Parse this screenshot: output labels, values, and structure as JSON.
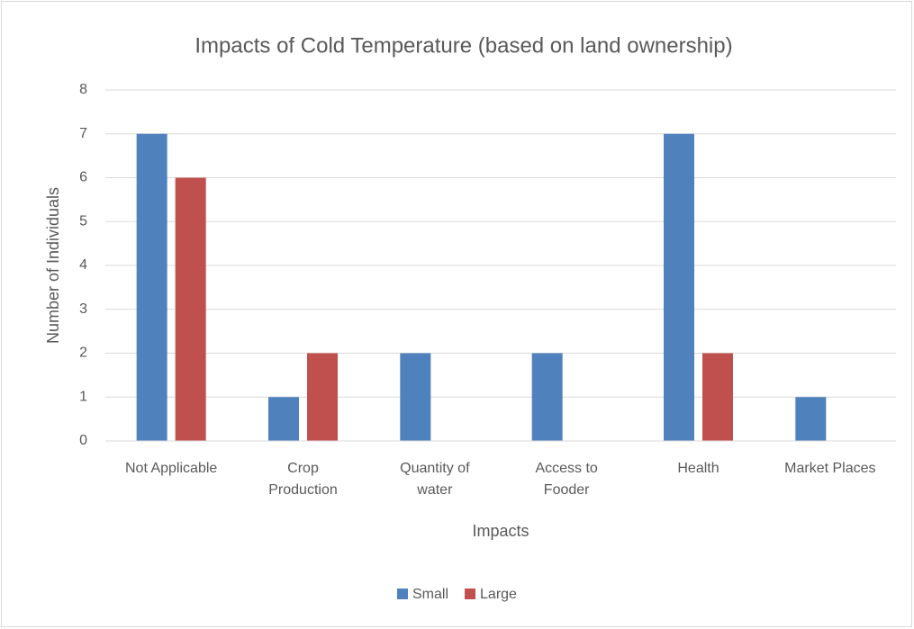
{
  "chart_data": {
    "type": "bar",
    "title": "Impacts of Cold Temperature (based on land ownership)",
    "x_label": "Impacts",
    "y_label": "Number of Individuals",
    "categories": [
      "Not Applicable",
      "Crop\nProduction",
      "Quantity of\nwater",
      "Access to\nFooder",
      "Health",
      "Market Places"
    ],
    "series": [
      {
        "name": "Small",
        "color": "#4f81bd",
        "values": [
          7,
          1,
          2,
          2,
          7,
          1
        ]
      },
      {
        "name": "Large",
        "color": "#c0504d",
        "values": [
          6,
          2,
          0,
          0,
          2,
          0
        ]
      }
    ],
    "ylim": [
      0,
      8
    ],
    "yticks": [
      0,
      1,
      2,
      3,
      4,
      5,
      6,
      7,
      8
    ],
    "grid": true,
    "legend": "bottom"
  }
}
